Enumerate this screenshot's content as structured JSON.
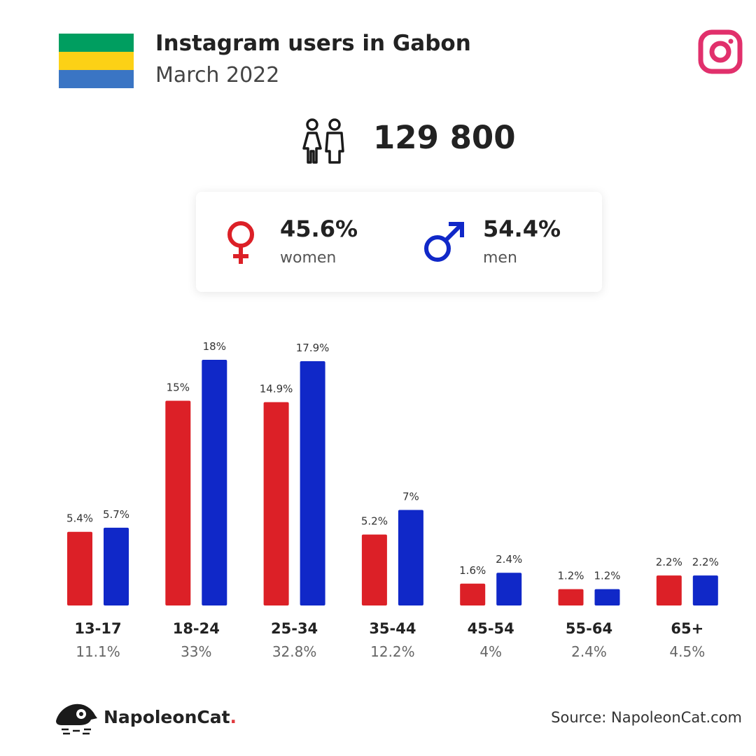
{
  "header": {
    "title": "Instagram users in Gabon",
    "subtitle": "March 2022",
    "flag_colors": [
      "#009E60",
      "#FCD116",
      "#3A75C4"
    ],
    "platform_icon": "instagram-icon",
    "accent": "#E1306C"
  },
  "total": {
    "icon": "people-icon",
    "value": "129 800"
  },
  "gender": {
    "women": {
      "icon": "female-symbol-icon",
      "percent": "45.6%",
      "label": "women",
      "color": "#DC2027"
    },
    "men": {
      "icon": "male-symbol-icon",
      "percent": "54.4%",
      "label": "men",
      "color": "#1028C8"
    }
  },
  "chart_data": {
    "type": "bar",
    "categories": [
      "13-17",
      "18-24",
      "25-34",
      "35-44",
      "45-54",
      "55-64",
      "65+"
    ],
    "category_totals": [
      "11.1%",
      "33%",
      "32.8%",
      "12.2%",
      "4%",
      "2.4%",
      "4.5%"
    ],
    "series": [
      {
        "name": "women",
        "color": "#DC2027",
        "values": [
          5.4,
          15,
          14.9,
          5.2,
          1.6,
          1.2,
          2.2
        ],
        "labels": [
          "5.4%",
          "15%",
          "14.9%",
          "5.2%",
          "1.6%",
          "1.2%",
          "2.2%"
        ]
      },
      {
        "name": "men",
        "color": "#1028C8",
        "values": [
          5.7,
          18,
          17.9,
          7,
          2.4,
          1.2,
          2.2
        ],
        "labels": [
          "5.7%",
          "18%",
          "17.9%",
          "7%",
          "2.4%",
          "1.2%",
          "2.2%"
        ]
      }
    ],
    "ylim": [
      0,
      18
    ],
    "grid": false
  },
  "footer": {
    "brand_name": "NapoleonCat",
    "brand_dot": ".",
    "source": "Source: NapoleonCat.com",
    "logo_icon": "napoleoncat-logo-icon"
  }
}
